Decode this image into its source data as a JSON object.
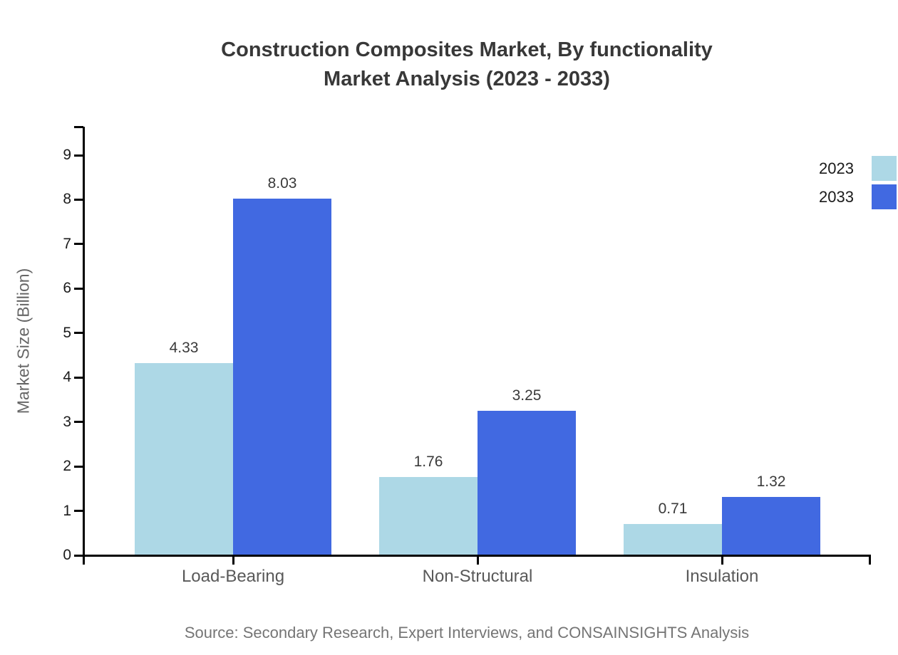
{
  "title": {
    "line1": "Construction Composites Market, By functionality",
    "line2": "Market Analysis (2023 - 2033)"
  },
  "legend": [
    {
      "label": "2023",
      "color": "#ADD8E6"
    },
    {
      "label": "2033",
      "color": "#4169E1"
    }
  ],
  "y_axis": {
    "label": "Market Size (Billion)",
    "ticks": [
      "0",
      "1",
      "2",
      "3",
      "4",
      "5",
      "6",
      "7",
      "8",
      "9"
    ]
  },
  "source": "Source: Secondary Research, Expert Interviews, and CONSAINSIGHTS Analysis",
  "chart_data": {
    "type": "bar",
    "categories": [
      "Load-Bearing",
      "Non-Structural",
      "Insulation"
    ],
    "series": [
      {
        "name": "2023",
        "color": "#ADD8E6",
        "values": [
          4.33,
          1.76,
          0.71
        ]
      },
      {
        "name": "2033",
        "color": "#4169E1",
        "values": [
          8.03,
          3.25,
          1.32
        ]
      }
    ],
    "title": "Construction Composites Market, By functionality Market Analysis (2023 - 2033)",
    "xlabel": "",
    "ylabel": "Market Size (Billion)",
    "ylim": [
      0,
      9.6
    ],
    "grid": false,
    "legend_position": "top-right",
    "bar_value_labels": true
  }
}
